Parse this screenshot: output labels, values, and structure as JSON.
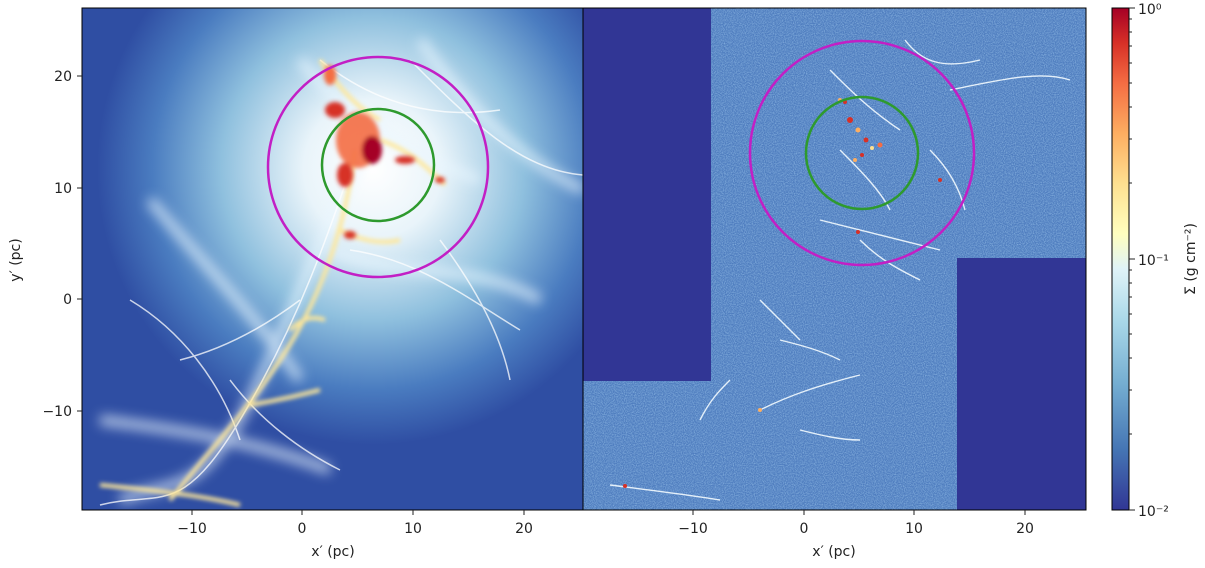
{
  "figure": {
    "left_panel": {
      "xlabel": "x′ (pc)",
      "ylabel": "y′ (pc)",
      "xticks": [
        "−10",
        "0",
        "10",
        "20"
      ],
      "yticks": [
        "20",
        "10",
        "0",
        "−10"
      ]
    },
    "right_panel": {
      "xlabel": "x′ (pc)",
      "xticks": [
        "−10",
        "0",
        "10",
        "20"
      ]
    },
    "colorbar": {
      "label": "Σ (g cm⁻²)",
      "ticks": [
        "10⁰",
        "10⁻¹",
        "10⁻²"
      ],
      "scale": "log",
      "range": [
        0.01,
        1.0
      ],
      "colormap": "RdYlBu_r"
    },
    "circle_colors": {
      "outer": "#c21fc5",
      "inner": "#2e9a2e"
    }
  }
}
